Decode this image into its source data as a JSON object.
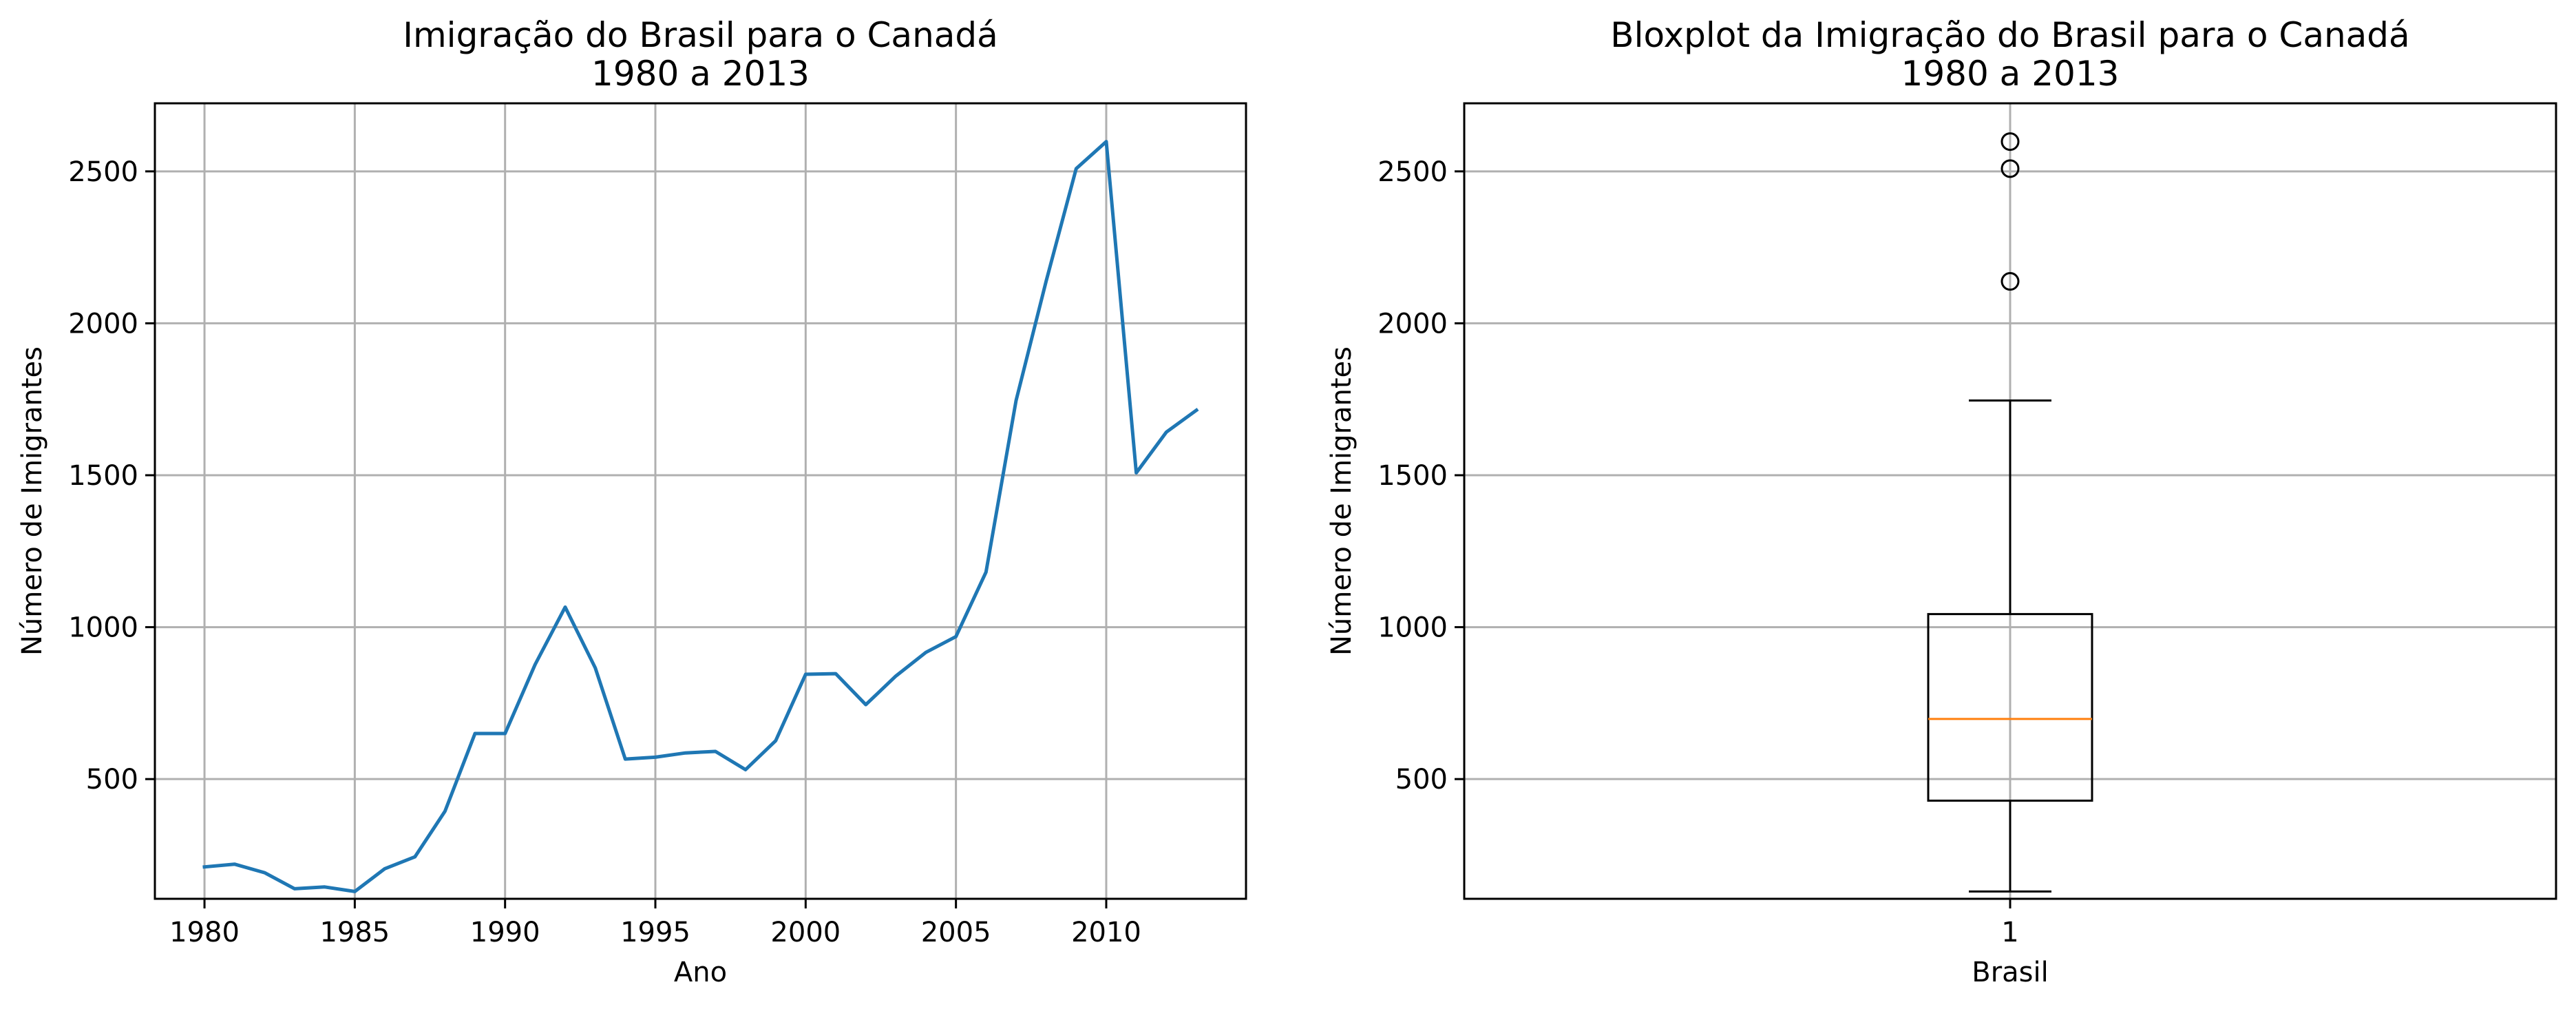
{
  "colors": {
    "line": "#1f77b4",
    "median": "#ff7f0e",
    "grid": "#b0b0b0",
    "axes": "#000000"
  },
  "chart_data": [
    {
      "type": "line",
      "title_line1": "Imigração do Brasil para o Canadá",
      "title_line2": "1980 a 2013",
      "xlabel": "Ano",
      "ylabel": "Número de Imigrantes",
      "xlim": [
        1978.35,
        2014.65
      ],
      "ylim": [
        106,
        2724
      ],
      "grid": true,
      "xticks": [
        1980,
        1985,
        1990,
        1995,
        2000,
        2005,
        2010
      ],
      "xtick_labels": [
        "1980",
        "1985",
        "1990",
        "1995",
        "2000",
        "2005",
        "2010"
      ],
      "yticks": [
        500,
        1000,
        1500,
        2000,
        2500
      ],
      "ytick_labels": [
        "500",
        "1000",
        "1500",
        "2000",
        "2500"
      ],
      "x": [
        1980,
        1981,
        1982,
        1983,
        1984,
        1985,
        1986,
        1987,
        1988,
        1989,
        1990,
        1991,
        1992,
        1993,
        1994,
        1995,
        1996,
        1997,
        1998,
        1999,
        2000,
        2001,
        2002,
        2003,
        2004,
        2005,
        2006,
        2007,
        2008,
        2009,
        2010,
        2011,
        2012,
        2013
      ],
      "y": [
        211,
        220,
        192,
        139,
        145,
        130,
        205,
        244,
        394,
        650,
        650,
        877,
        1066,
        866,
        566,
        572,
        586,
        591,
        531,
        626,
        845,
        847,
        745,
        839,
        917,
        969,
        1181,
        1746,
        2138,
        2509,
        2598,
        1508,
        1642,
        1714
      ]
    },
    {
      "type": "box",
      "title_line1": "Bloxplot da Imigração do Brasil para o Canadá",
      "title_line2": "1980 a 2013",
      "xlabel": "Brasil",
      "ylabel": "Número de Imigrantes",
      "ylim": [
        106,
        2724
      ],
      "grid": true,
      "xtick_labels": [
        "1"
      ],
      "yticks": [
        500,
        1000,
        1500,
        2000,
        2500
      ],
      "ytick_labels": [
        "500",
        "1000",
        "1500",
        "2000",
        "2500"
      ],
      "whisker_low": 130,
      "q1": 429,
      "median": 698,
      "q3": 1043,
      "whisker_high": 1746,
      "outliers": [
        2138,
        2509,
        2598
      ]
    }
  ]
}
